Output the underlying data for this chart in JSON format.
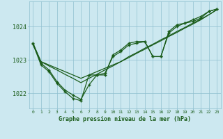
{
  "title": "Graphe pression niveau de la mer (hPa)",
  "bg_color": "#cce8f0",
  "line_color": "#1a5c1a",
  "grid_color": "#90c0d0",
  "hours": [
    0,
    1,
    2,
    3,
    4,
    5,
    6,
    7,
    8,
    9,
    10,
    11,
    12,
    13,
    14,
    15,
    16,
    17,
    18,
    19,
    20,
    21,
    22,
    23
  ],
  "line_trend1": [
    1023.5,
    1022.95,
    1022.82,
    1022.7,
    1022.57,
    1022.45,
    1022.32,
    1022.45,
    1022.57,
    1022.7,
    1022.82,
    1022.95,
    1023.07,
    1023.2,
    1023.32,
    1023.45,
    1023.57,
    1023.7,
    1023.82,
    1023.95,
    1024.07,
    1024.2,
    1024.35,
    1024.5
  ],
  "line_trend2": [
    1023.45,
    1022.95,
    1022.85,
    1022.75,
    1022.65,
    1022.55,
    1022.45,
    1022.55,
    1022.65,
    1022.75,
    1022.85,
    1022.95,
    1023.1,
    1023.22,
    1023.35,
    1023.47,
    1023.6,
    1023.72,
    1023.85,
    1023.97,
    1024.1,
    1024.22,
    1024.35,
    1024.5
  ],
  "line_wavy1": [
    1023.5,
    1022.9,
    1022.7,
    1022.35,
    1022.1,
    1021.95,
    1021.82,
    1022.25,
    1022.55,
    1022.55,
    1023.15,
    1023.3,
    1023.5,
    1023.55,
    1023.55,
    1023.1,
    1023.1,
    1023.85,
    1024.05,
    1024.1,
    1024.2,
    1024.3,
    1024.45,
    1024.52
  ],
  "line_wavy2": [
    1023.48,
    1022.85,
    1022.65,
    1022.3,
    1022.05,
    1021.85,
    1021.78,
    1022.55,
    1022.55,
    1022.6,
    1023.1,
    1023.25,
    1023.45,
    1023.5,
    1023.55,
    1023.1,
    1023.1,
    1023.8,
    1024.0,
    1024.1,
    1024.15,
    1024.25,
    1024.45,
    1024.52
  ],
  "yticks": [
    1022.0,
    1023.0,
    1024.0
  ],
  "ylim": [
    1021.55,
    1024.75
  ],
  "xlim": [
    -0.5,
    23.5
  ]
}
